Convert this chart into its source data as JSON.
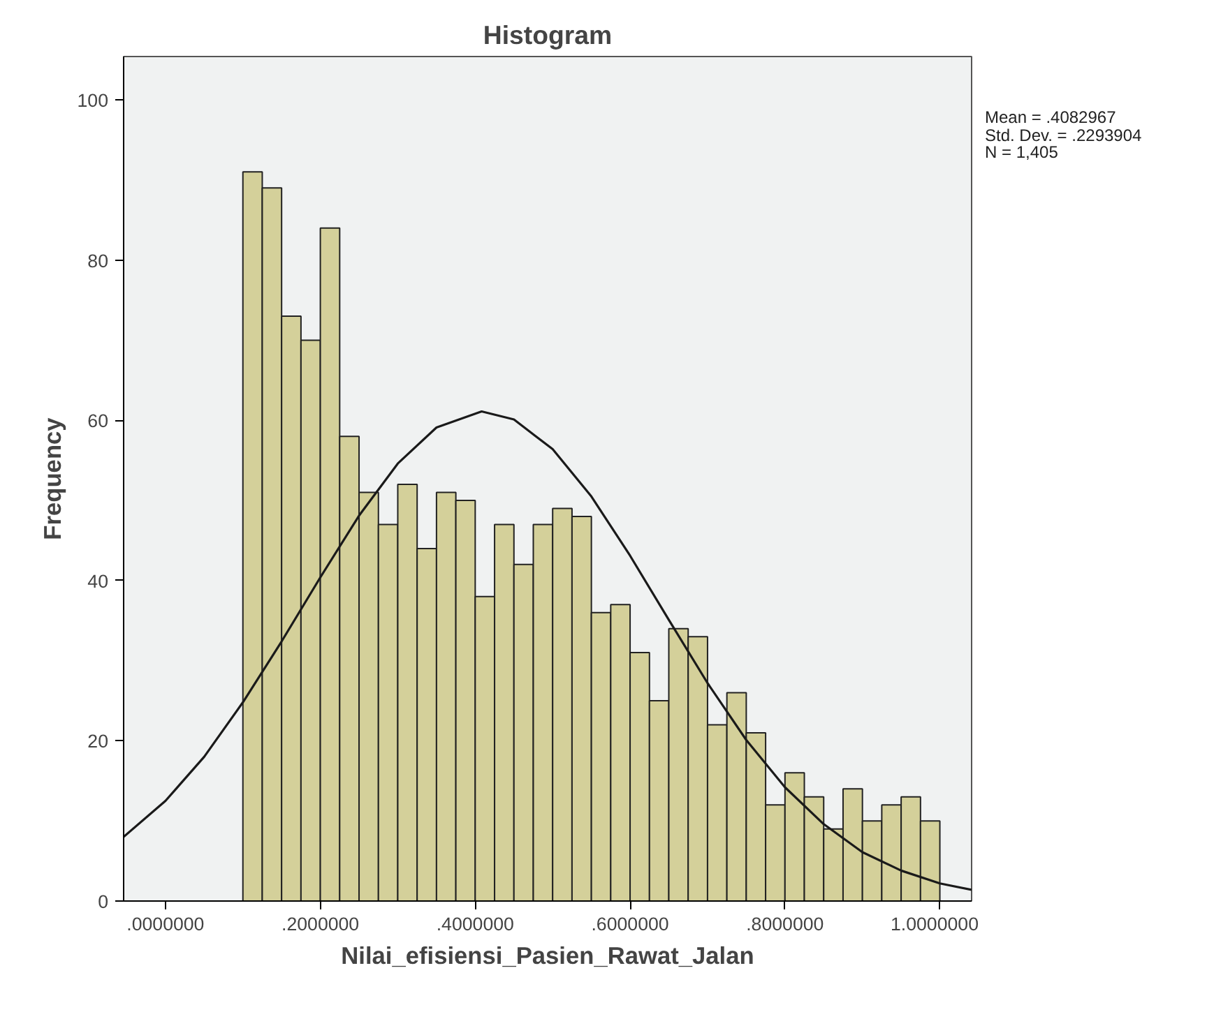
{
  "chart_data": {
    "type": "histogram",
    "title": "Histogram",
    "xlabel": "Nilai_efisiensi_Pasien_Rawat_Jalan",
    "ylabel": "Frequency",
    "xlim": [
      -0.054,
      1.041
    ],
    "ylim": [
      0,
      105.4
    ],
    "xticks": [
      {
        "value": 0,
        "label": ".0000000"
      },
      {
        "value": 0.2,
        "label": ".2000000"
      },
      {
        "value": 0.4,
        "label": ".4000000"
      },
      {
        "value": 0.6,
        "label": ".6000000"
      },
      {
        "value": 0.8,
        "label": ".8000000"
      },
      {
        "value": 1.0,
        "label": "1.0000000"
      }
    ],
    "yticks": [
      0,
      20,
      40,
      60,
      80,
      100
    ],
    "grid": false,
    "annotations": [
      "Mean = .4082967",
      "Std. Dev. = .2293904",
      "N = 1,405"
    ],
    "color": "#d4d09a",
    "bins": [
      0.1,
      0.125,
      0.15,
      0.175,
      0.2,
      0.225,
      0.25,
      0.275,
      0.3,
      0.325,
      0.35,
      0.375,
      0.4,
      0.425,
      0.45,
      0.475,
      0.5,
      0.525,
      0.55,
      0.575,
      0.6,
      0.625,
      0.65,
      0.675,
      0.7,
      0.725,
      0.75,
      0.775,
      0.8,
      0.825,
      0.85,
      0.875,
      0.9,
      0.925,
      0.95,
      0.975,
      1.0
    ],
    "values": [
      91,
      89,
      73,
      70,
      84,
      58,
      51,
      47,
      52,
      44,
      51,
      50,
      38,
      47,
      42,
      47,
      49,
      48,
      36,
      37,
      31,
      25,
      34,
      33,
      22,
      26,
      21,
      12,
      16,
      13,
      9,
      14,
      10,
      12,
      13,
      10
    ],
    "series": [
      {
        "type": "line",
        "color": "#1a1a1a",
        "x": [
          -0.054,
          0.0,
          0.05,
          0.1,
          0.15,
          0.2,
          0.25,
          0.3,
          0.35,
          0.4083,
          0.45,
          0.5,
          0.55,
          0.6,
          0.65,
          0.7,
          0.75,
          0.8,
          0.85,
          0.9,
          0.95,
          1.0,
          1.041
        ],
        "values": [
          8.0,
          12.5,
          18.0,
          24.8,
          32.4,
          40.4,
          48.1,
          54.6,
          59.1,
          61.1,
          60.1,
          56.4,
          50.5,
          43.1,
          35.1,
          27.2,
          20.1,
          14.2,
          9.6,
          6.1,
          3.8,
          2.2,
          1.4
        ]
      }
    ]
  }
}
